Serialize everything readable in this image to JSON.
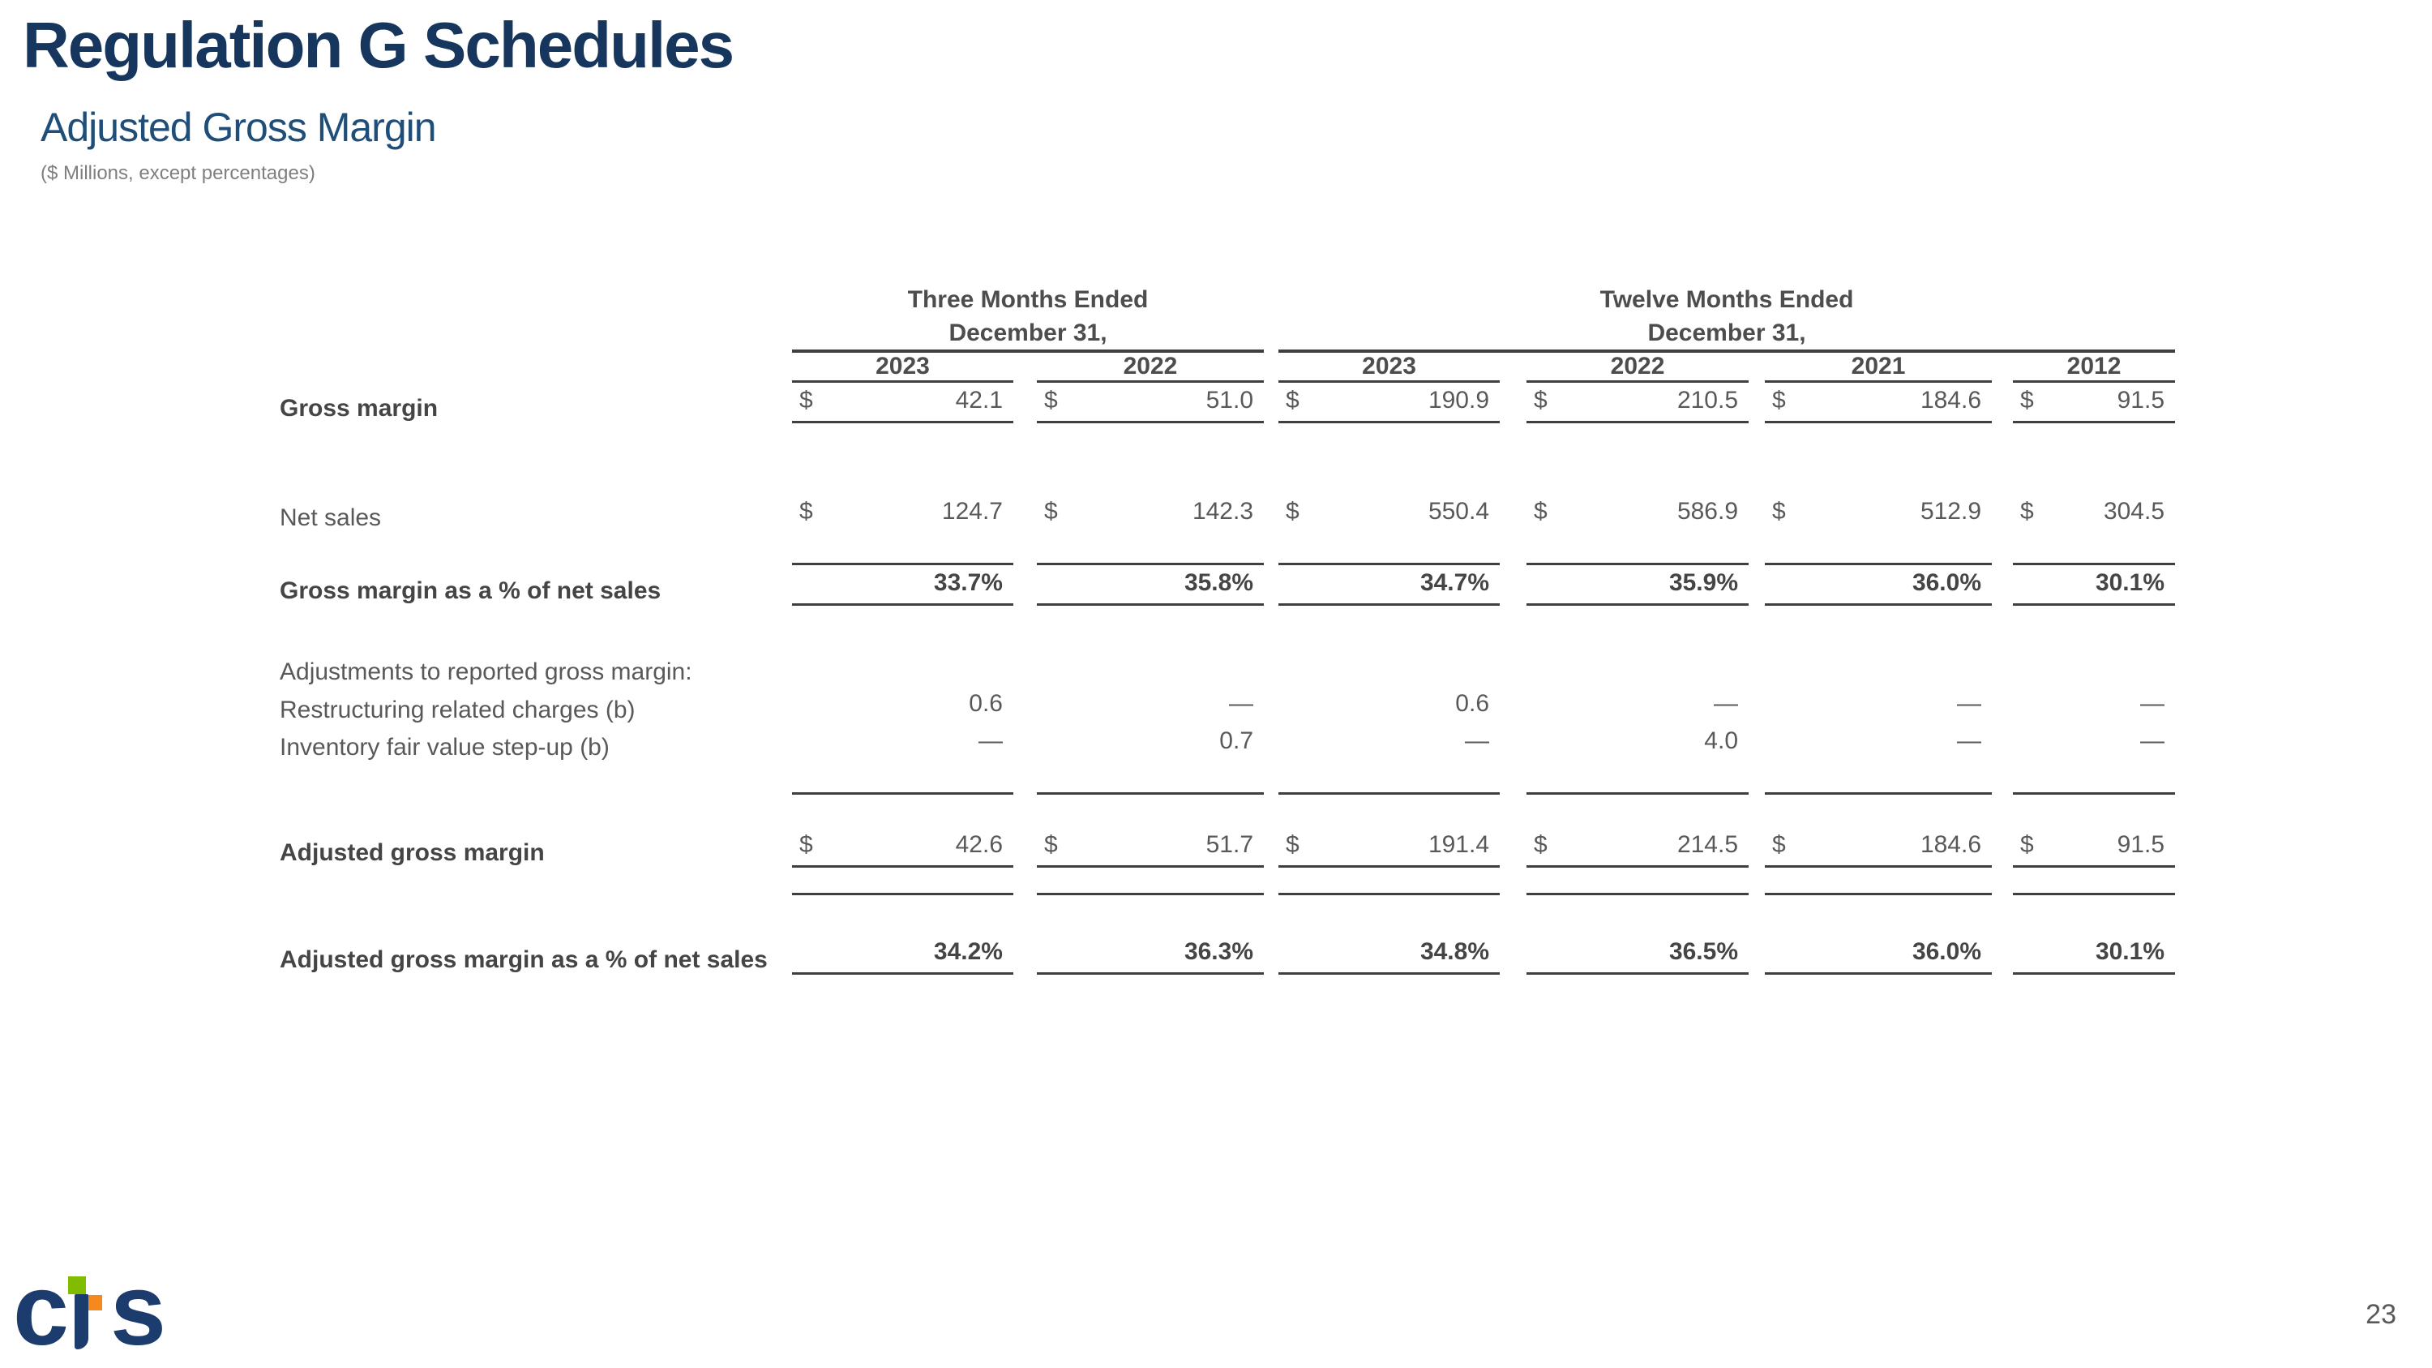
{
  "header": {
    "title": "Regulation G Schedules",
    "subtitle": "Adjusted Gross Margin",
    "note": "($ Millions, except percentages)"
  },
  "footer": {
    "page_number": "23"
  },
  "logo": {
    "brand": "cts",
    "c": "c",
    "s": "s",
    "navy": "#1B3C6D",
    "green": "#82BC00",
    "orange": "#F6891E"
  },
  "table": {
    "groups": [
      {
        "line1": "Three Months Ended",
        "line2": "December 31,"
      },
      {
        "line1": "Twelve Months Ended",
        "line2": "December 31,"
      }
    ],
    "years": [
      "2023",
      "2022",
      "2023",
      "2022",
      "2021",
      "2012"
    ],
    "rows": [
      {
        "label": "Gross margin",
        "bold": true,
        "cells": [
          [
            "$",
            "42.1"
          ],
          [
            "$",
            "51.0"
          ],
          [
            "$",
            "190.9"
          ],
          [
            "$",
            "210.5"
          ],
          [
            "$",
            "184.6"
          ],
          [
            "$",
            "91.5"
          ]
        ]
      },
      {
        "label": "Net sales",
        "bold": false,
        "cells": [
          [
            "$",
            "124.7"
          ],
          [
            "$",
            "142.3"
          ],
          [
            "$",
            "550.4"
          ],
          [
            "$",
            "586.9"
          ],
          [
            "$",
            "512.9"
          ],
          [
            "$",
            "304.5"
          ]
        ]
      },
      {
        "label": "Gross margin as a % of net sales",
        "bold": true,
        "bold_values": true,
        "cells": [
          [
            "",
            "33.7%"
          ],
          [
            "",
            "35.8%"
          ],
          [
            "",
            "34.7%"
          ],
          [
            "",
            "35.9%"
          ],
          [
            "",
            "36.0%"
          ],
          [
            "",
            "30.1%"
          ]
        ]
      },
      {
        "label": "Adjustments to reported gross margin:",
        "bold": false,
        "cells": []
      },
      {
        "label": "Restructuring related charges (b)",
        "bold": false,
        "indent": true,
        "cells": [
          [
            "",
            "0.6"
          ],
          [
            "",
            "—"
          ],
          [
            "",
            "0.6"
          ],
          [
            "",
            "—"
          ],
          [
            "",
            "—"
          ],
          [
            "",
            "—"
          ]
        ]
      },
      {
        "label": "Inventory fair value step-up (b)",
        "bold": false,
        "indent": true,
        "cells": [
          [
            "",
            "—"
          ],
          [
            "",
            "0.7"
          ],
          [
            "",
            "—"
          ],
          [
            "",
            "4.0"
          ],
          [
            "",
            "—"
          ],
          [
            "",
            "—"
          ]
        ]
      },
      {
        "label": "Adjusted gross margin",
        "bold": true,
        "cells": [
          [
            "$",
            "42.6"
          ],
          [
            "$",
            "51.7"
          ],
          [
            "$",
            "191.4"
          ],
          [
            "$",
            "214.5"
          ],
          [
            "$",
            "184.6"
          ],
          [
            "$",
            "91.5"
          ]
        ]
      },
      {
        "label": "Adjusted gross margin as a % of net sales",
        "bold": true,
        "bold_values": true,
        "cells": [
          [
            "",
            "34.2%"
          ],
          [
            "",
            "36.3%"
          ],
          [
            "",
            "34.8%"
          ],
          [
            "",
            "36.5%"
          ],
          [
            "",
            "36.0%"
          ],
          [
            "",
            "30.1%"
          ]
        ]
      }
    ]
  }
}
